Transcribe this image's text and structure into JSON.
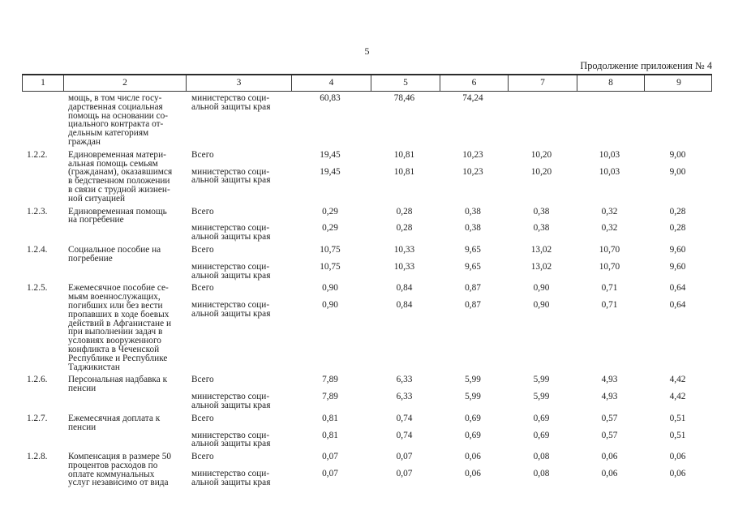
{
  "page": {
    "number": "5",
    "continuation_note": "Продолжение приложения № 4"
  },
  "table": {
    "column_numbers": [
      "1",
      "2",
      "3",
      "4",
      "5",
      "6",
      "7",
      "8",
      "9"
    ],
    "rows": [
      {
        "num": "",
        "name": "мощь, в том числе госу-\nдарственная социальная\nпомощь на основании со-\nциального контракта от-\nдельным категориям\nграждан",
        "entries": [
          {
            "label": "министерство соци-\nальной защиты края",
            "values": [
              "60,83",
              "78,46",
              "74,24",
              "",
              "",
              ""
            ]
          }
        ]
      },
      {
        "num": "1.2.2.",
        "name": "Единовременная матери-\nальная помощь семьям\n(гражданам), оказавшимся\nв бедственном положении\nв связи с трудной жизнен-\nной ситуацией",
        "entries": [
          {
            "label": "Всего",
            "values": [
              "19,45",
              "10,81",
              "10,23",
              "10,20",
              "10,03",
              "9,00"
            ]
          },
          {
            "label": "министерство соци-\nальной защиты края",
            "values": [
              "19,45",
              "10,81",
              "10,23",
              "10,20",
              "10,03",
              "9,00"
            ]
          }
        ]
      },
      {
        "num": "1.2.3.",
        "name": "Единовременная помощь\nна погребение",
        "entries": [
          {
            "label": "Всего",
            "values": [
              "0,29",
              "0,28",
              "0,38",
              "0,38",
              "0,32",
              "0,28"
            ]
          },
          {
            "label": "министерство соци-\nальной защиты края",
            "values": [
              "0,29",
              "0,28",
              "0,38",
              "0,38",
              "0,32",
              "0,28"
            ]
          }
        ]
      },
      {
        "num": "1.2.4.",
        "name": "Социальное пособие на\nпогребение",
        "entries": [
          {
            "label": "Всего",
            "values": [
              "10,75",
              "10,33",
              "9,65",
              "13,02",
              "10,70",
              "9,60"
            ]
          },
          {
            "label": "министерство соци-\nальной защиты края",
            "values": [
              "10,75",
              "10,33",
              "9,65",
              "13,02",
              "10,70",
              "9,60"
            ]
          }
        ]
      },
      {
        "num": "1.2.5.",
        "name": "Ежемесячное пособие се-\nмьям военнослужащих,\nпогибших или без вести\nпропавших в ходе боевых\nдействий в Афганистане и\nпри выполнении задач в\nусловиях вооруженного\nконфликта в Чеченской\nРеспублике и Республике\nТаджикистан",
        "entries": [
          {
            "label": "Всего",
            "values": [
              "0,90",
              "0,84",
              "0,87",
              "0,90",
              "0,71",
              "0,64"
            ]
          },
          {
            "label": "министерство соци-\nальной защиты края",
            "values": [
              "0,90",
              "0,84",
              "0,87",
              "0,90",
              "0,71",
              "0,64"
            ]
          }
        ]
      },
      {
        "num": "1.2.6.",
        "name": "Персональная надбавка к\nпенсии",
        "entries": [
          {
            "label": "Всего",
            "values": [
              "7,89",
              "6,33",
              "5,99",
              "5,99",
              "4,93",
              "4,42"
            ]
          },
          {
            "label": "министерство соци-\nальной защиты края",
            "values": [
              "7,89",
              "6,33",
              "5,99",
              "5,99",
              "4,93",
              "4,42"
            ]
          }
        ]
      },
      {
        "num": "1.2.7.",
        "name": "Ежемесячная доплата к\nпенсии",
        "entries": [
          {
            "label": "Всего",
            "values": [
              "0,81",
              "0,74",
              "0,69",
              "0,69",
              "0,57",
              "0,51"
            ]
          },
          {
            "label": "министерство соци-\nальной защиты края",
            "values": [
              "0,81",
              "0,74",
              "0,69",
              "0,69",
              "0,57",
              "0,51"
            ]
          }
        ]
      },
      {
        "num": "1.2.8.",
        "name": "Компенсация в размере 50\nпроцентов расходов по\nоплате коммунальных\nуслуг независимо от вида",
        "entries": [
          {
            "label": "Всего",
            "values": [
              "0,07",
              "0,07",
              "0,06",
              "0,08",
              "0,06",
              "0,06"
            ]
          },
          {
            "label": "министерство соци-\nальной защиты края",
            "values": [
              "0,07",
              "0,07",
              "0,06",
              "0,08",
              "0,06",
              "0,06"
            ]
          }
        ]
      }
    ]
  }
}
